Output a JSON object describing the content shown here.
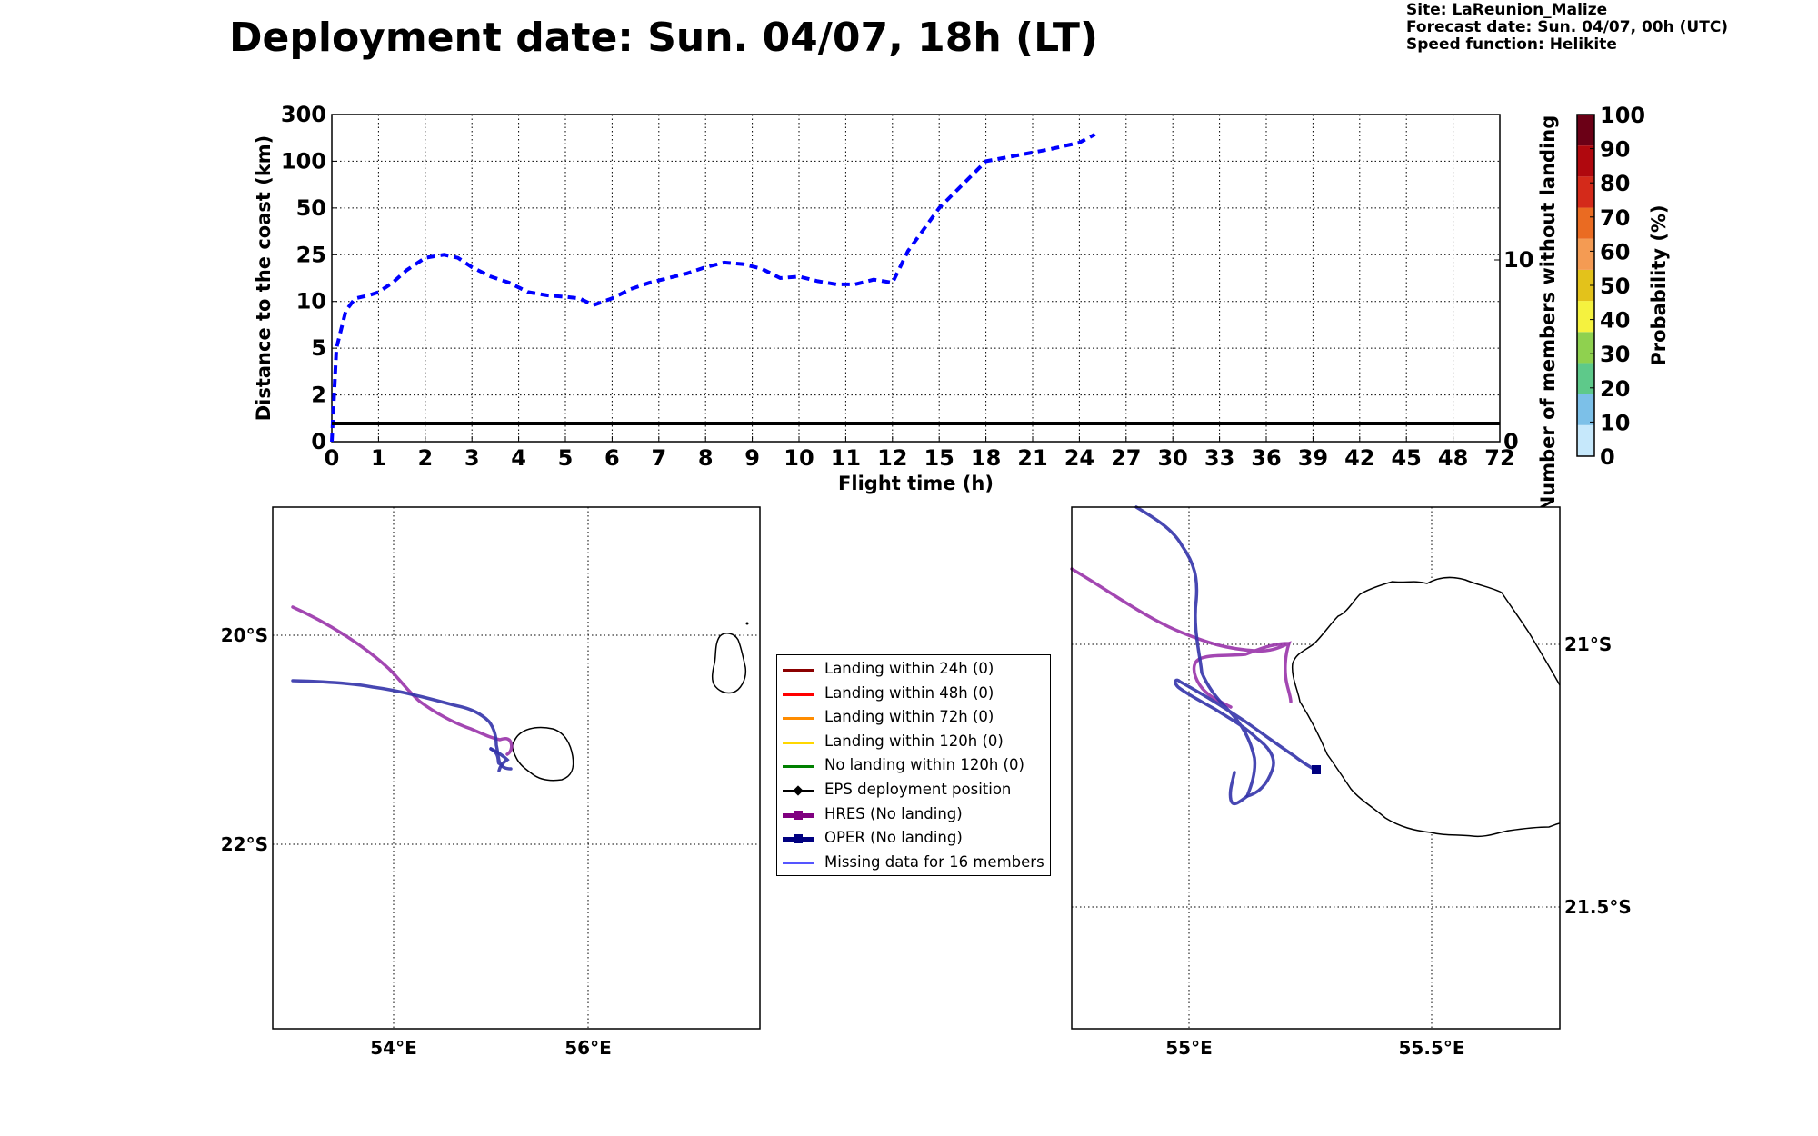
{
  "header": {
    "title": "Deployment date: Sun. 04/07, 18h (LT)",
    "site": "Site: LaReunion_Malize",
    "forecast_date": "Forecast date: Sun. 04/07, 00h (UTC)",
    "speed_function": "Speed function: Helikite"
  },
  "colorbar": {
    "label": "Probability (%)",
    "ticks": [
      "0",
      "10",
      "20",
      "30",
      "40",
      "50",
      "60",
      "70",
      "80",
      "90",
      "100"
    ],
    "colors": [
      "#c6e8fb",
      "#7cc0e8",
      "#5ec98a",
      "#8fd14f",
      "#f5f23f",
      "#e3c21b",
      "#f49b53",
      "#ea6b22",
      "#d42a1a",
      "#b0080e",
      "#6b0016"
    ]
  },
  "legend": {
    "items": [
      {
        "label": "Landing within 24h (0)",
        "color": "#8b0000",
        "style": "line"
      },
      {
        "label": "Landing within 48h (0)",
        "color": "#ff0000",
        "style": "line"
      },
      {
        "label": "Landing within 72h (0)",
        "color": "#ff8c00",
        "style": "line"
      },
      {
        "label": "Landing within 120h (0)",
        "color": "#ffd700",
        "style": "line"
      },
      {
        "label": "No landing within 120h (0)",
        "color": "#008000",
        "style": "line"
      },
      {
        "label": "EPS deployment position",
        "color": "#000000",
        "style": "diamond"
      },
      {
        "label": "HRES (No landing)",
        "color": "#800080",
        "style": "square-thick"
      },
      {
        "label": "OPER (No landing)",
        "color": "#000080",
        "style": "square-thick"
      },
      {
        "label": "Missing data for 16 members",
        "color": "#5555ff",
        "style": "thin"
      }
    ]
  },
  "chart_data": [
    {
      "type": "line",
      "xlabel": "Flight time (h)",
      "ylabel": "Distance to the coast (km)",
      "y2label": "Number of members without landing",
      "x_ticks": [
        "0",
        "1",
        "2",
        "3",
        "4",
        "5",
        "6",
        "7",
        "8",
        "9",
        "10",
        "11",
        "12",
        "15",
        "18",
        "21",
        "24",
        "27",
        "30",
        "33",
        "36",
        "39",
        "42",
        "45",
        "48",
        "72"
      ],
      "y_ticks": [
        "0",
        "2",
        "5",
        "10",
        "25",
        "50",
        "100",
        "300"
      ],
      "y2_ticks": [
        "0",
        "10"
      ],
      "grid": true,
      "series": [
        {
          "color": "#0000ff",
          "style": "dashed",
          "axis": "left",
          "x": [
            0,
            0.1,
            0.3,
            0.5,
            0.8,
            1,
            1.3,
            1.6,
            2,
            2.4,
            2.7,
            3,
            3.4,
            3.8,
            4.2,
            4.6,
            5,
            5.3,
            5.6,
            6,
            6.4,
            6.8,
            7.2,
            7.6,
            8,
            8.4,
            8.8,
            9.2,
            9.6,
            10,
            10.4,
            10.8,
            11.2,
            11.6,
            12,
            13,
            15,
            18,
            20,
            22,
            24,
            25
          ],
          "y": [
            0,
            5,
            9,
            11,
            12,
            13,
            16,
            20,
            24,
            25,
            24,
            21,
            18,
            16,
            13,
            12,
            11.5,
            11,
            9.6,
            11,
            14,
            16,
            17.5,
            19,
            21,
            22.5,
            22,
            20.5,
            17.5,
            18,
            16.5,
            15.5,
            15.5,
            17,
            16,
            27,
            50,
            100,
            125,
            150,
            180,
            215
          ]
        },
        {
          "color": "#000000",
          "style": "solid",
          "axis": "right",
          "x": [
            0,
            72
          ],
          "y": [
            1,
            1
          ]
        }
      ]
    },
    {
      "type": "map",
      "lon_ticks": [
        "54°E",
        "56°E"
      ],
      "lat_ticks": [
        "20°S",
        "22°S"
      ]
    },
    {
      "type": "map",
      "lon_ticks": [
        "55°E",
        "55.5°E"
      ],
      "lat_ticks": [
        "21°S",
        "21.5°S"
      ]
    }
  ]
}
